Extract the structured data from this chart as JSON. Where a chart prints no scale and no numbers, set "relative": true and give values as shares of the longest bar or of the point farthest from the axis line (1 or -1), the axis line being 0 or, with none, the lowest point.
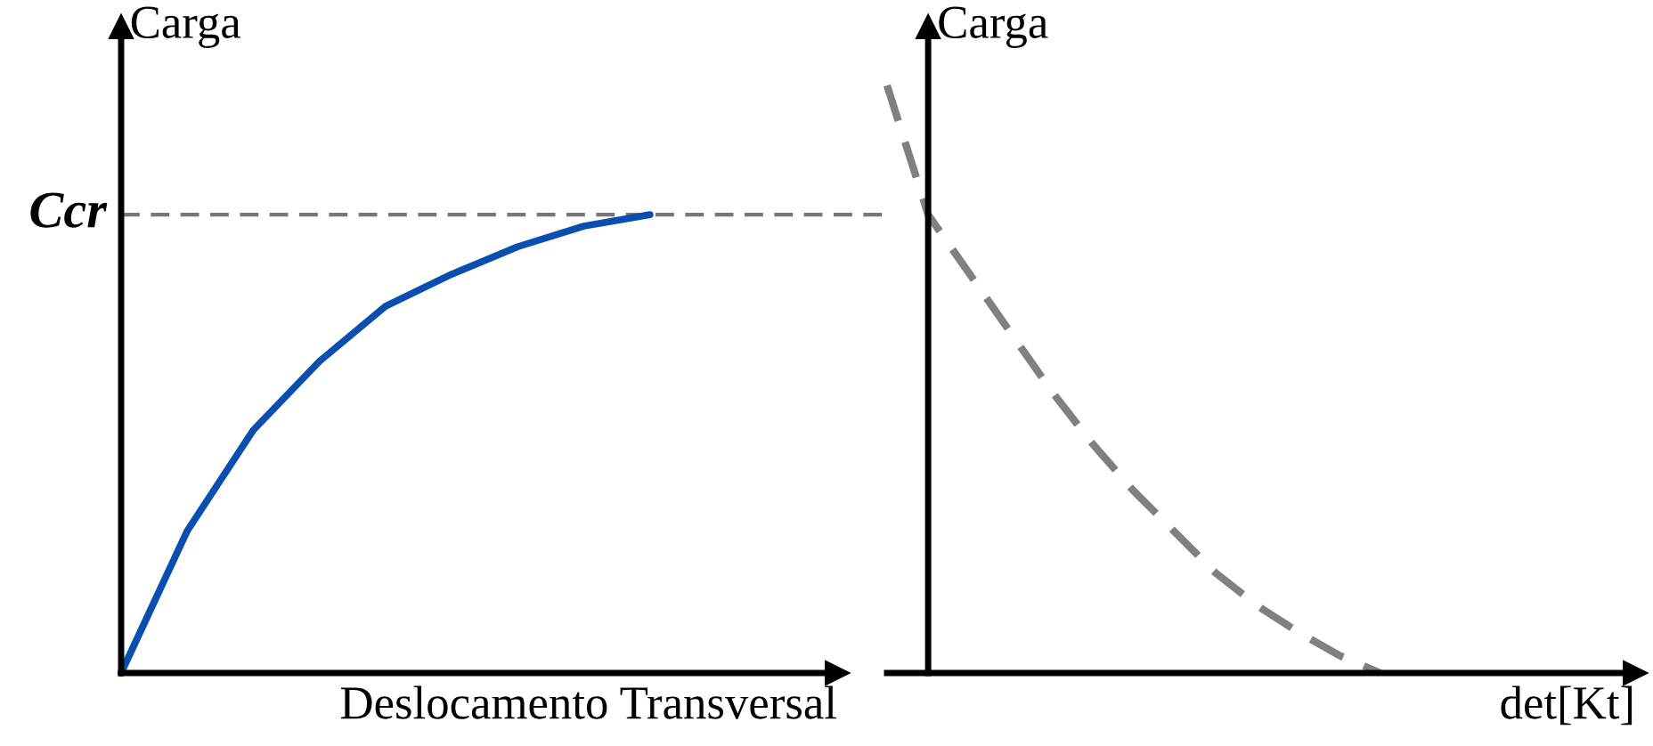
{
  "chart_data": [
    {
      "type": "line",
      "relative": true,
      "ylabel": "Carga",
      "xlabel": "Deslocamento Transversal",
      "marker": "none",
      "categories": [
        null,
        null,
        null,
        null,
        null,
        null,
        null,
        null,
        null
      ],
      "series": [
        {
          "color": "#0a4fb0",
          "line_style": "solid",
          "values": [
            0,
            0.31,
            0.53,
            0.68,
            0.8,
            0.87,
            0.93,
            0.975,
            1
          ]
        }
      ],
      "ref_lines": [
        {
          "axis": "y",
          "value": 1,
          "label": "Ccr",
          "color": "#777777",
          "line_style": "dashed"
        }
      ]
    },
    {
      "type": "line",
      "relative": true,
      "ylabel": "Carga",
      "xlabel": "det[Kt]",
      "marker": "none",
      "categories": [
        null,
        null,
        null,
        null,
        null,
        null,
        null,
        null,
        null,
        null,
        null,
        null,
        null
      ],
      "series": [
        {
          "color": "#808080",
          "line_style": "dashed",
          "values": [
            1,
            0.78,
            0.68,
            0.58,
            0.48,
            0.39,
            0.31,
            0.24,
            0.17,
            0.115,
            0.07,
            0.03,
            0
          ]
        }
      ]
    }
  ]
}
